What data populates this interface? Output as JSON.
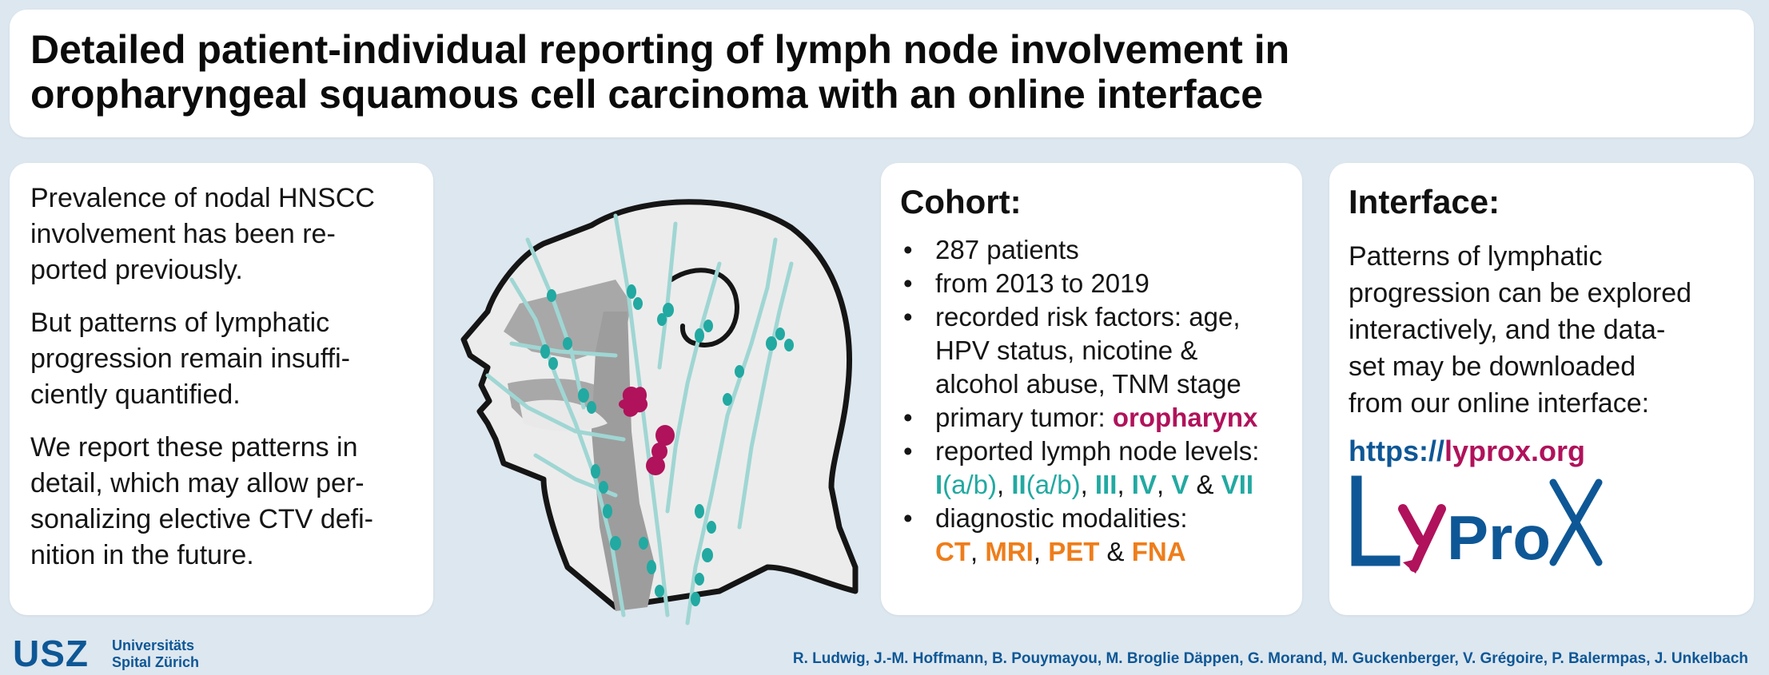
{
  "title": {
    "line1": "Detailed patient-individual reporting of lymph node involvement in",
    "line2": "oropharyngeal squamous cell carcinoma with an online interface"
  },
  "left_panel": {
    "paragraphs": [
      "Prevalence of nodal HNSCC involvement has been re-ported previously.",
      "But patterns of lymphatic progression remain insuffi-ciently quantified.",
      "We report these patterns in detail, which may allow per-sonalizing elective CTV defi-nition in the future."
    ],
    "lines": [
      [
        "Prevalence of nodal HNSCC",
        "involvement has been re-",
        "ported previously."
      ],
      [
        "But patterns of lymphatic",
        "progression remain insuffi-",
        "ciently quantified."
      ],
      [
        "We report these patterns in",
        "detail, which may allow per-",
        "sonalizing elective CTV defi-",
        "nition in the future."
      ]
    ]
  },
  "cohort": {
    "heading": "Cohort:",
    "bullet": "•",
    "items": {
      "patients": "287 patients",
      "years": "from 2013 to 2019",
      "risk_line1": "recorded risk factors: age,",
      "risk_line2": "HPV status, nicotine &",
      "risk_line3": "alcohol abuse, TNM stage",
      "primary_label": "primary tumor: ",
      "primary_value": "oropharynx",
      "levels_label": "reported lymph node levels:",
      "levels": {
        "l1": "I",
        "l1sub": "(a/b)",
        "sep1": ", ",
        "l2": "II",
        "l2sub": "(a/b)",
        "sep2": ", ",
        "l3": "III",
        "sep3": ", ",
        "l4": "IV",
        "sep4": ", ",
        "l5": "V",
        "amp": " & ",
        "l7": "VII"
      },
      "modalities_label": "diagnostic modalities:",
      "modalities": {
        "ct": "CT",
        "sep1": ", ",
        "mri": "MRI",
        "sep2": ", ",
        "pet": "PET",
        "amp": " & ",
        "fna": "FNA"
      }
    }
  },
  "interface": {
    "heading": "Interface:",
    "text_lines": [
      "Patterns of lymphatic",
      "progression can be explored",
      "interactively, and the data-",
      "set may be downloaded",
      "from our online interface:"
    ],
    "url_prefix": "https://",
    "url_domain": "lyprox.org",
    "logo_text": "LyProX"
  },
  "footer": {
    "logo_mark": "USZ",
    "logo_line1": "Universitäts",
    "logo_line2": "Spital Zürich",
    "authors": "R. Ludwig, J.-M. Hoffmann, B. Pouymayou, M. Broglie Däppen, G. Morand, M. Guckenberger, V. Grégoire, P. Balermpas, J. Unkelbach"
  },
  "colors": {
    "background": "#dde7ef",
    "usz_blue": "#0e5796",
    "tumor_magenta": "#b0125b",
    "node_teal": "#22a9a1",
    "modality_orange": "#ee7d1b"
  }
}
